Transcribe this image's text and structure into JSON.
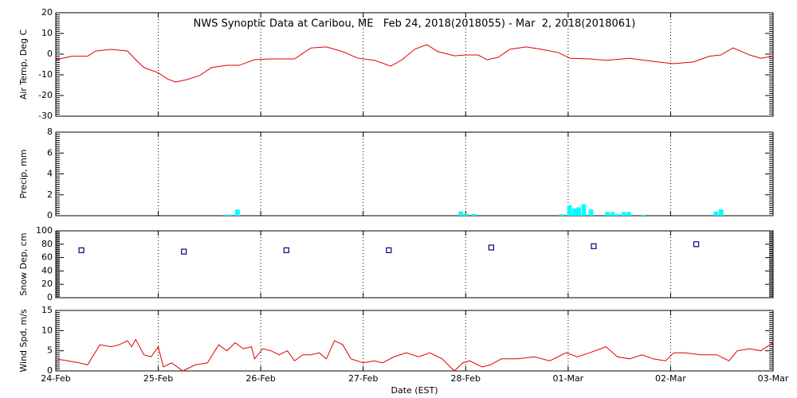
{
  "chart_data": [
    {
      "type": "line",
      "title": "NWS Synoptic Data at Caribou, ME   Feb 24, 2018(2018055) - Mar  2, 2018(2018061)",
      "ylabel": "Air Temp, Deg C",
      "color": "#e00000",
      "x": [
        0,
        0.16,
        0.31,
        0.39,
        0.54,
        0.7,
        0.78,
        0.86,
        1.0,
        1.09,
        1.17,
        1.28,
        1.4,
        1.52,
        1.67,
        1.79,
        1.94,
        2.1,
        2.33,
        2.49,
        2.64,
        2.8,
        2.95,
        3.11,
        3.27,
        3.38,
        3.5,
        3.62,
        3.73,
        3.89,
        4.0,
        4.12,
        4.21,
        4.32,
        4.43,
        4.59,
        4.74,
        4.9,
        5.02,
        5.21,
        5.37,
        5.6,
        5.83,
        6.03,
        6.22,
        6.38,
        6.49,
        6.61,
        6.77,
        6.88,
        7.0
      ],
      "values": [
        -2.7,
        -1,
        -1,
        1.5,
        2.3,
        1.5,
        -2.7,
        -6.5,
        -9,
        -12,
        -13.5,
        -12.3,
        -10.4,
        -6.5,
        -5.4,
        -5.4,
        -2.7,
        -2.3,
        -2.3,
        3,
        3.5,
        1.2,
        -2,
        -3,
        -5.8,
        -2.7,
        2.3,
        4.6,
        1.2,
        -0.8,
        -0.4,
        -0.4,
        -2.7,
        -1.5,
        2.3,
        3.5,
        2.3,
        0.8,
        -2,
        -2.3,
        -3,
        -2,
        -3.5,
        -4.6,
        -3.8,
        -1,
        -0.4,
        3,
        -0.4,
        -2,
        -1
      ],
      "xlim": [
        0,
        7
      ],
      "ylim": [
        -30,
        20
      ],
      "yticks": [
        -30,
        -20,
        -10,
        0,
        10,
        20
      ]
    },
    {
      "type": "bar",
      "ylabel": "Precip, mm",
      "color": "#00ffff",
      "x": [
        1.63,
        1.68,
        1.75,
        3.93,
        3.98,
        4.06,
        4.91,
        4.99,
        5.04,
        5.08,
        5.13,
        5.2,
        5.36,
        5.41,
        5.46,
        5.52,
        5.57,
        5.71,
        6.42,
        6.47
      ],
      "values": [
        0.1,
        0.1,
        0.6,
        0.4,
        0.2,
        0.15,
        0.15,
        1.0,
        0.7,
        0.8,
        1.1,
        0.6,
        0.35,
        0.35,
        0.15,
        0.35,
        0.35,
        0.1,
        0.4,
        0.6
      ],
      "xlim": [
        0,
        7
      ],
      "ylim": [
        0,
        8
      ],
      "yticks": [
        0,
        2,
        4,
        6,
        8
      ]
    },
    {
      "type": "scatter",
      "ylabel": "Snow Dep, cm",
      "color": "#000080",
      "x": [
        0.25,
        1.25,
        2.25,
        3.25,
        4.25,
        5.25,
        6.25
      ],
      "values": [
        71,
        69,
        71,
        71,
        75,
        77,
        80
      ],
      "xlim": [
        0,
        7
      ],
      "ylim": [
        0,
        100
      ],
      "yticks": [
        0,
        20,
        40,
        60,
        80,
        100
      ]
    },
    {
      "type": "line",
      "ylabel": "Wind Spd, m/s",
      "xlabel": "Date (EST)",
      "color": "#e00000",
      "x": [
        0,
        0.12,
        0.23,
        0.31,
        0.43,
        0.54,
        0.62,
        0.7,
        0.74,
        0.78,
        0.86,
        0.93,
        1.0,
        1.05,
        1.13,
        1.24,
        1.36,
        1.48,
        1.59,
        1.67,
        1.75,
        1.83,
        1.91,
        1.94,
        2.02,
        2.1,
        2.18,
        2.26,
        2.33,
        2.41,
        2.49,
        2.57,
        2.64,
        2.72,
        2.8,
        2.88,
        3.0,
        3.11,
        3.19,
        3.3,
        3.42,
        3.54,
        3.65,
        3.77,
        3.89,
        3.97,
        4.04,
        4.16,
        4.24,
        4.35,
        4.51,
        4.67,
        4.82,
        4.98,
        5.09,
        5.21,
        5.37,
        5.48,
        5.6,
        5.72,
        5.83,
        5.95,
        6.03,
        6.14,
        6.3,
        6.45,
        6.57,
        6.65,
        6.77,
        6.88,
        7.0
      ],
      "values": [
        3,
        2.5,
        2,
        1.5,
        6.5,
        6,
        6.5,
        7.5,
        6,
        7.8,
        4,
        3.5,
        6,
        1,
        2,
        0,
        1.5,
        2,
        6.5,
        5,
        7,
        5.5,
        6,
        3,
        5.5,
        5,
        4,
        5,
        2.5,
        4,
        4,
        4.5,
        3,
        7.5,
        6.5,
        3,
        2,
        2.5,
        2,
        3.5,
        4.5,
        3.5,
        4.5,
        3,
        0,
        2,
        2.5,
        1,
        1.5,
        3,
        3,
        3.5,
        2.5,
        4.5,
        3.5,
        4.5,
        6,
        3.5,
        3,
        4,
        3,
        2.5,
        4.5,
        4.5,
        4,
        4,
        2.5,
        5,
        5.5,
        5,
        7
      ],
      "xlim": [
        0,
        7
      ],
      "ylim": [
        0,
        15
      ],
      "yticks": [
        0,
        5,
        10,
        15
      ],
      "xticks": [
        {
          "value": 0,
          "label": "24-Feb"
        },
        {
          "value": 1,
          "label": "25-Feb"
        },
        {
          "value": 2,
          "label": "26-Feb"
        },
        {
          "value": 3,
          "label": "27-Feb"
        },
        {
          "value": 4,
          "label": "28-Feb"
        },
        {
          "value": 5,
          "label": "01-Mar"
        },
        {
          "value": 6,
          "label": "02-Mar"
        },
        {
          "value": 7,
          "label": "03-Mar"
        }
      ]
    }
  ]
}
